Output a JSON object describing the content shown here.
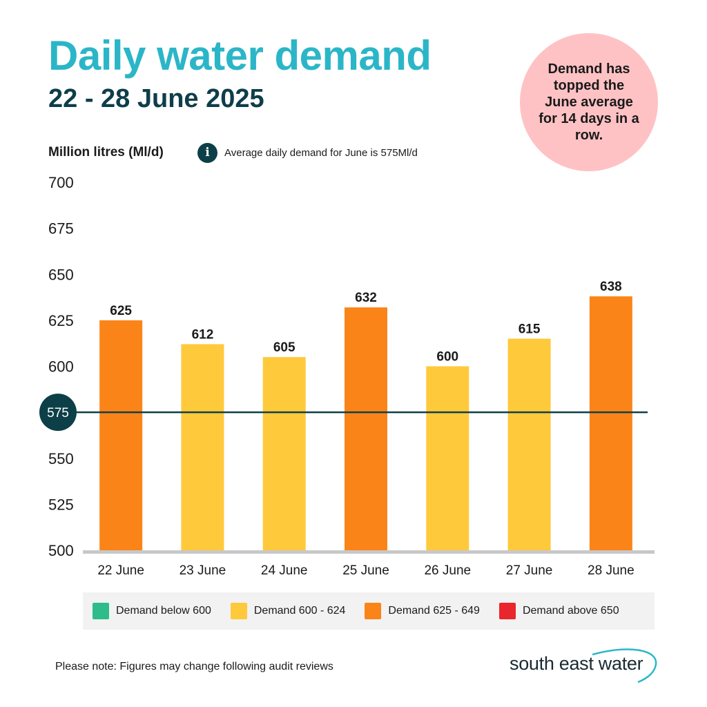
{
  "title": "Daily water demand",
  "subtitle": "22 - 28 June 2025",
  "callout": "Demand has topped the June average for 14 days in a row.",
  "unit_label": "Million litres (Ml/d)",
  "info_icon": "info-icon",
  "info_text": "Average daily demand for June is 575Ml/d",
  "chart_data": {
    "type": "bar",
    "categories": [
      "22 June",
      "23 June",
      "24 June",
      "25 June",
      "26 June",
      "27 June",
      "28 June"
    ],
    "values": [
      625,
      612,
      605,
      632,
      600,
      615,
      638
    ],
    "ylim": [
      500,
      700
    ],
    "yticks": [
      500,
      525,
      550,
      575,
      600,
      625,
      650,
      675,
      700
    ],
    "reference_line": {
      "value": 575,
      "label": "575"
    },
    "bands": [
      {
        "label": "Demand below 600",
        "color": "#2ebd8a"
      },
      {
        "label": "Demand 600 - 624",
        "color": "#ffc93c"
      },
      {
        "label": "Demand 625 - 649",
        "color": "#fb8419"
      },
      {
        "label": "Demand above 650",
        "color": "#e8262b"
      }
    ],
    "bar_colors": [
      "#fb8419",
      "#ffc93c",
      "#ffc93c",
      "#fb8419",
      "#ffc93c",
      "#ffc93c",
      "#fb8419"
    ]
  },
  "colors": {
    "title": "#2bb6c8",
    "dark": "#0e3e4a",
    "callout_bg": "#ffc2c4",
    "axis": "#c8c8c8"
  },
  "note": "Please note: Figures may change following audit reviews",
  "logo_text": "south east water"
}
